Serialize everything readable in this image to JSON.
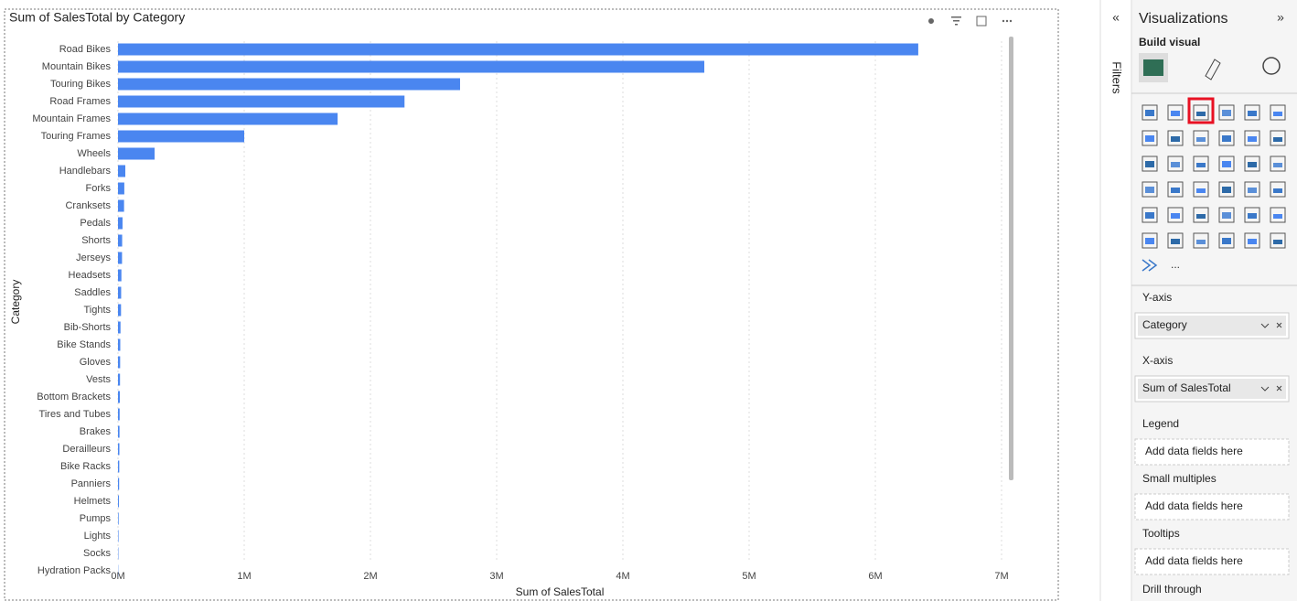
{
  "chart_data": {
    "type": "bar",
    "orientation": "horizontal",
    "title": "Sum of SalesTotal by Category",
    "x_label": "Sum of SalesTotal",
    "y_label": "Category",
    "categories": [
      "Road Bikes",
      "Mountain Bikes",
      "Touring Bikes",
      "Road Frames",
      "Mountain Frames",
      "Touring Frames",
      "Wheels",
      "Handlebars",
      "Forks",
      "Cranksets",
      "Pedals",
      "Shorts",
      "Jerseys",
      "Headsets",
      "Saddles",
      "Tights",
      "Bib-Shorts",
      "Bike Stands",
      "Gloves",
      "Vests",
      "Bottom Brackets",
      "Tires and Tubes",
      "Brakes",
      "Derailleurs",
      "Bike Racks",
      "Panniers",
      "Helmets",
      "Pumps",
      "Lights",
      "Socks",
      "Hydration Packs"
    ],
    "values": [
      6340000,
      4645000,
      2710000,
      2270000,
      1740000,
      1000000,
      290000,
      58000,
      50000,
      48000,
      36000,
      33000,
      32000,
      27000,
      25000,
      24000,
      20000,
      18000,
      17000,
      16000,
      15000,
      13000,
      12000,
      11000,
      10000,
      9000,
      7000,
      5000,
      4000,
      3000,
      2000
    ],
    "color": "#4a86f0",
    "xlim": [
      0,
      7000000
    ],
    "xticks": [
      {
        "value": 0,
        "label": "0M"
      },
      {
        "value": 1000000,
        "label": "1M"
      },
      {
        "value": 2000000,
        "label": "2M"
      },
      {
        "value": 3000000,
        "label": "3M"
      },
      {
        "value": 4000000,
        "label": "4M"
      },
      {
        "value": 5000000,
        "label": "5M"
      },
      {
        "value": 6000000,
        "label": "6M"
      },
      {
        "value": 7000000,
        "label": "7M"
      }
    ],
    "grid": true
  },
  "filters_pane": {
    "title": "Filters"
  },
  "visualizations_pane": {
    "title": "Visualizations",
    "subtitle": "Build visual",
    "more": "...",
    "wells": [
      {
        "label": "Y-axis",
        "field": "Category"
      },
      {
        "label": "X-axis",
        "field": "Sum of SalesTotal"
      },
      {
        "label": "Legend",
        "placeholder": "Add data fields here"
      },
      {
        "label": "Small multiples",
        "placeholder": "Add data fields here"
      },
      {
        "label": "Tooltips",
        "placeholder": "Add data fields here"
      }
    ],
    "footer": "Drill through"
  }
}
